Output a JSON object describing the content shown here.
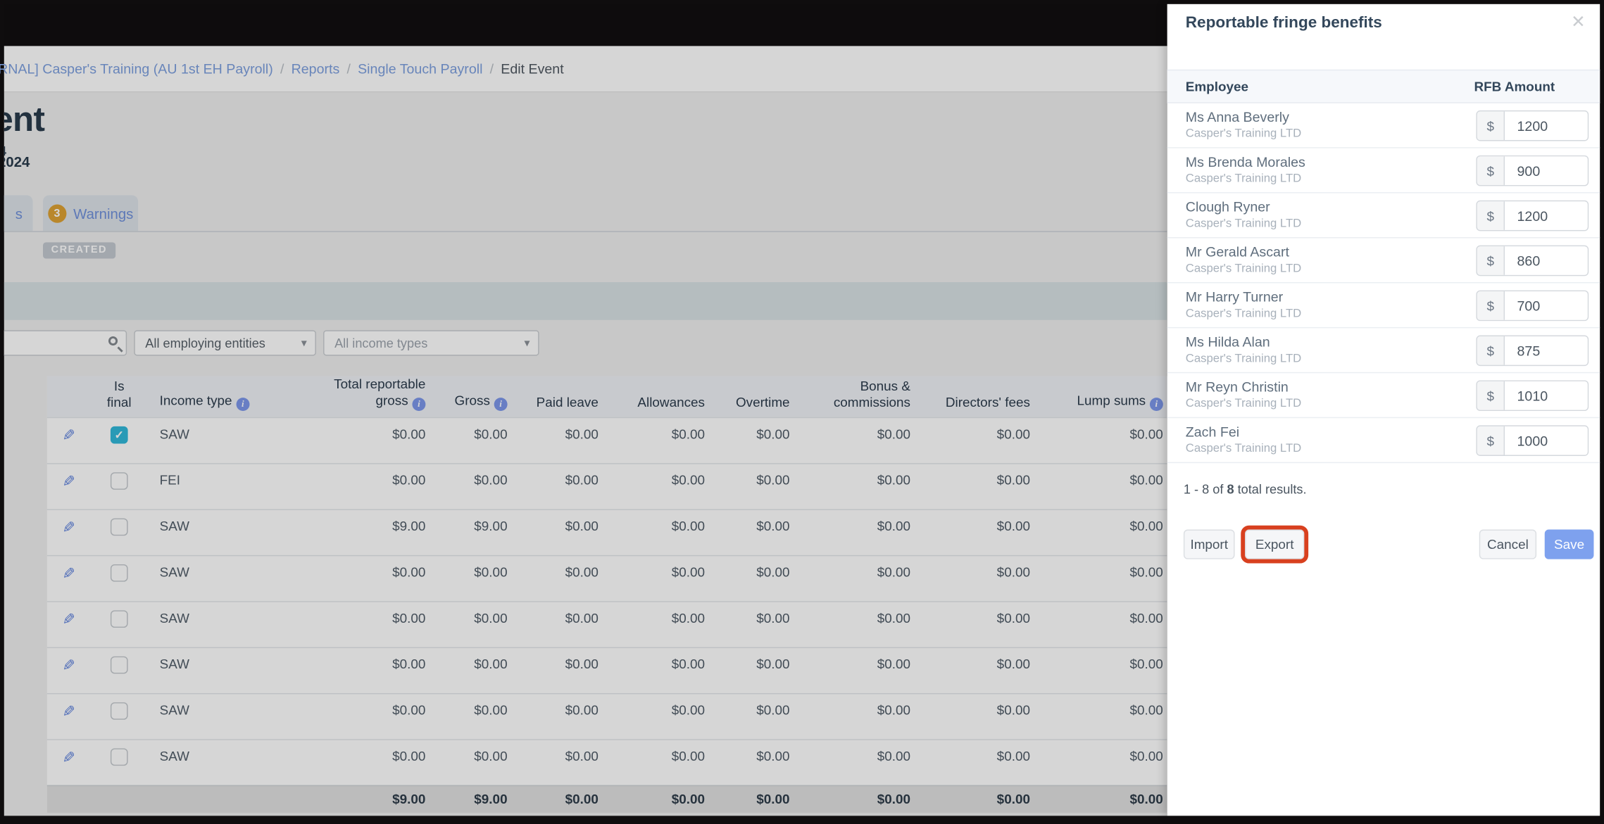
{
  "breadcrumb": {
    "company_link": "RNAL] Casper's Training (AU 1st EH Payroll)",
    "sep": "/",
    "reports_link": "Reports",
    "stp_link": "Single Touch Payroll",
    "current": "Edit Event"
  },
  "header": {
    "title_fragment": "ent",
    "subtitle_fragment": "4",
    "date_fragment": "2024"
  },
  "tabs": {
    "partial_label": "s",
    "warnings_count": "3",
    "warnings_label": "Warnings"
  },
  "status_badge": "CREATED",
  "filters": {
    "employing_entities": "All employing entities",
    "income_types": "All income types",
    "caret": "▾"
  },
  "table": {
    "columns": [
      {
        "label": "",
        "info": false
      },
      {
        "label": "Is final",
        "info": false
      },
      {
        "label": "Income type",
        "info": true
      },
      {
        "label": "Total reportable gross",
        "info": true
      },
      {
        "label": "Gross",
        "info": true
      },
      {
        "label": "Paid leave",
        "info": false
      },
      {
        "label": "Allowances",
        "info": false
      },
      {
        "label": "Overtime",
        "info": false
      },
      {
        "label": "Bonus & commissions",
        "info": false
      },
      {
        "label": "Directors' fees",
        "info": false
      },
      {
        "label": "Lump sums",
        "info": true
      }
    ],
    "rows": [
      {
        "is_final": true,
        "income_type": "SAW",
        "values": [
          "$0.00",
          "$0.00",
          "$0.00",
          "$0.00",
          "$0.00",
          "$0.00",
          "$0.00",
          "$0.00"
        ]
      },
      {
        "is_final": false,
        "income_type": "FEI",
        "values": [
          "$0.00",
          "$0.00",
          "$0.00",
          "$0.00",
          "$0.00",
          "$0.00",
          "$0.00",
          "$0.00"
        ]
      },
      {
        "is_final": false,
        "income_type": "SAW",
        "values": [
          "$9.00",
          "$9.00",
          "$0.00",
          "$0.00",
          "$0.00",
          "$0.00",
          "$0.00",
          "$0.00"
        ]
      },
      {
        "is_final": false,
        "income_type": "SAW",
        "values": [
          "$0.00",
          "$0.00",
          "$0.00",
          "$0.00",
          "$0.00",
          "$0.00",
          "$0.00",
          "$0.00"
        ]
      },
      {
        "is_final": false,
        "income_type": "SAW",
        "values": [
          "$0.00",
          "$0.00",
          "$0.00",
          "$0.00",
          "$0.00",
          "$0.00",
          "$0.00",
          "$0.00"
        ]
      },
      {
        "is_final": false,
        "income_type": "SAW",
        "values": [
          "$0.00",
          "$0.00",
          "$0.00",
          "$0.00",
          "$0.00",
          "$0.00",
          "$0.00",
          "$0.00"
        ]
      },
      {
        "is_final": false,
        "income_type": "SAW",
        "values": [
          "$0.00",
          "$0.00",
          "$0.00",
          "$0.00",
          "$0.00",
          "$0.00",
          "$0.00",
          "$0.00"
        ]
      },
      {
        "is_final": false,
        "income_type": "SAW",
        "values": [
          "$0.00",
          "$0.00",
          "$0.00",
          "$0.00",
          "$0.00",
          "$0.00",
          "$0.00",
          "$0.00"
        ]
      }
    ],
    "totals": [
      "$9.00",
      "$9.00",
      "$0.00",
      "$0.00",
      "$0.00",
      "$0.00",
      "$0.00",
      "$0.00"
    ]
  },
  "panel": {
    "title": "Reportable fringe benefits",
    "close": "✕",
    "columns": {
      "employee": "Employee",
      "amount": "RFB Amount"
    },
    "currency": "$",
    "rows": [
      {
        "name": "Ms Anna Beverly",
        "company": "Casper's Training LTD",
        "amount": "1200"
      },
      {
        "name": "Ms Brenda Morales",
        "company": "Casper's Training LTD",
        "amount": "900"
      },
      {
        "name": "Clough Ryner",
        "company": "Casper's Training LTD",
        "amount": "1200"
      },
      {
        "name": "Mr Gerald Ascart",
        "company": "Casper's Training LTD",
        "amount": "860"
      },
      {
        "name": "Mr Harry Turner",
        "company": "Casper's Training LTD",
        "amount": "700"
      },
      {
        "name": "Ms Hilda Alan",
        "company": "Casper's Training LTD",
        "amount": "875"
      },
      {
        "name": "Mr Reyn Christin",
        "company": "Casper's Training LTD",
        "amount": "1010"
      },
      {
        "name": "Zach Fei",
        "company": "Casper's Training LTD",
        "amount": "1000"
      }
    ],
    "results": {
      "prefix": "1 - 8 of ",
      "bold": "8",
      "suffix": " total results."
    },
    "footer": {
      "import": "Import",
      "export": "Export",
      "cancel": "Cancel",
      "save": "Save"
    }
  },
  "colors": {
    "accent_blue": "#7ea1ee",
    "checkbox_teal": "#2fb7d9",
    "warning_amber": "#dda032",
    "highlight_red": "#d8401f",
    "link_blue": "#7b9ede"
  }
}
